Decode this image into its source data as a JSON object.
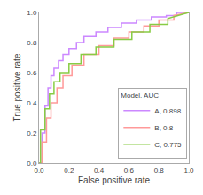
{
  "chart_data": {
    "type": "line",
    "xlabel": "False positive rate",
    "ylabel": "True positive rate",
    "legend_title": "Model, AUC",
    "legend": "lower right",
    "grid": false,
    "series": [
      {
        "name": "A, 0.898",
        "color": "#cc88ff",
        "x": [
          0.0,
          0.02,
          0.02,
          0.04,
          0.04,
          0.06,
          0.06,
          0.08,
          0.08,
          0.1,
          0.1,
          0.13,
          0.13,
          0.16,
          0.16,
          0.2,
          0.2,
          0.25,
          0.25,
          0.3,
          0.3,
          0.38,
          0.38,
          0.46,
          0.46,
          0.55,
          0.55,
          0.65,
          0.65,
          0.75,
          0.75,
          0.85,
          0.85,
          0.92,
          0.92,
          1.0
        ],
        "values": [
          0.0,
          0.0,
          0.2,
          0.2,
          0.38,
          0.38,
          0.5,
          0.5,
          0.58,
          0.58,
          0.63,
          0.63,
          0.68,
          0.68,
          0.72,
          0.72,
          0.76,
          0.76,
          0.8,
          0.8,
          0.84,
          0.84,
          0.87,
          0.87,
          0.9,
          0.9,
          0.93,
          0.93,
          0.95,
          0.95,
          0.97,
          0.97,
          0.98,
          0.98,
          1.0,
          1.0
        ]
      },
      {
        "name": "B, 0.8",
        "color": "#ff9999",
        "x": [
          0.0,
          0.02,
          0.02,
          0.05,
          0.05,
          0.08,
          0.08,
          0.12,
          0.12,
          0.16,
          0.16,
          0.22,
          0.22,
          0.3,
          0.3,
          0.4,
          0.4,
          0.5,
          0.5,
          0.6,
          0.6,
          0.7,
          0.7,
          0.8,
          0.8,
          0.9,
          0.9,
          1.0
        ],
        "values": [
          0.0,
          0.0,
          0.14,
          0.14,
          0.3,
          0.3,
          0.4,
          0.4,
          0.5,
          0.5,
          0.58,
          0.58,
          0.65,
          0.65,
          0.72,
          0.72,
          0.78,
          0.78,
          0.83,
          0.83,
          0.87,
          0.87,
          0.91,
          0.91,
          0.95,
          0.95,
          0.98,
          1.0
        ]
      },
      {
        "name": "C, 0.775",
        "color": "#88cc44",
        "x": [
          0.0,
          0.01,
          0.01,
          0.04,
          0.04,
          0.07,
          0.07,
          0.1,
          0.1,
          0.14,
          0.14,
          0.2,
          0.2,
          0.28,
          0.28,
          0.38,
          0.38,
          0.5,
          0.5,
          0.62,
          0.62,
          0.74,
          0.74,
          0.86,
          0.86,
          1.0
        ],
        "values": [
          0.0,
          0.0,
          0.22,
          0.22,
          0.36,
          0.36,
          0.46,
          0.46,
          0.54,
          0.54,
          0.6,
          0.6,
          0.66,
          0.66,
          0.72,
          0.72,
          0.77,
          0.77,
          0.82,
          0.82,
          0.87,
          0.87,
          0.92,
          0.92,
          0.96,
          1.0
        ]
      }
    ],
    "xlim": [
      0.0,
      1.0
    ],
    "ylim": [
      0.0,
      1.0
    ],
    "xticks": [
      {
        "value": 0.0,
        "label": "0.0"
      },
      0.2,
      0.4,
      0.6,
      0.8,
      {
        "value": 1.0,
        "label": "1.0"
      }
    ],
    "yticks": [
      {
        "value": 0.0,
        "label": "0.0"
      },
      0.2,
      0.4,
      0.6,
      0.8,
      {
        "value": 1.0,
        "label": "1.0"
      }
    ]
  }
}
